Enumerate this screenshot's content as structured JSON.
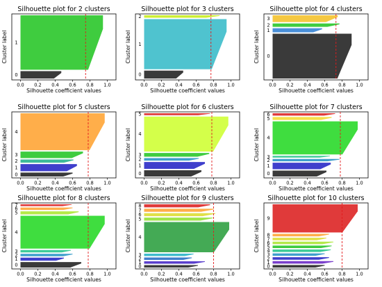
{
  "chart_data": [
    {
      "type": "silhouette",
      "title": "Silhouette plot for 2 clusters",
      "xlabel": "Silhouette coefficient values",
      "ylabel": "Cluster label",
      "xlim": [
        -0.1,
        1.1
      ],
      "xticks": [
        "0.0",
        "0.2",
        "0.4",
        "0.6",
        "0.8",
        "1.0"
      ],
      "average": 0.75,
      "clusters": [
        {
          "label": "0",
          "color": "#3a3a3a",
          "size": 12,
          "max": 0.47
        },
        {
          "label": "1",
          "color": "#3fcc3f",
          "size": 88,
          "max": 0.95
        }
      ]
    },
    {
      "type": "silhouette",
      "title": "Silhouette plot for 3 clusters",
      "xlabel": "Silhouette coefficient values",
      "ylabel": "Cluster label",
      "xlim": [
        -0.1,
        1.1
      ],
      "xticks": [
        "0.0",
        "0.2",
        "0.4",
        "0.6",
        "0.8",
        "1.0"
      ],
      "average": 0.77,
      "clusters": [
        {
          "label": "0",
          "color": "#3a3a3a",
          "size": 13,
          "max": 0.45
        },
        {
          "label": "1",
          "color": "#4fc3cf",
          "size": 82,
          "max": 0.95
        },
        {
          "label": "2",
          "color": "#ccee33",
          "size": 4,
          "max": 0.87
        }
      ]
    },
    {
      "type": "silhouette",
      "title": "Silhouette plot for 4 clusters",
      "xlabel": "Silhouette coefficient values",
      "ylabel": "Cluster label",
      "xlim": [
        -0.1,
        1.1
      ],
      "xticks": [
        "0.0",
        "0.2",
        "0.4",
        "0.6",
        "0.8",
        "1.0"
      ],
      "average": 0.73,
      "clusters": [
        {
          "label": "0",
          "color": "#3a3a3a",
          "size": 66,
          "max": 0.91
        },
        {
          "label": "1",
          "color": "#4a90d9",
          "size": 6,
          "max": 0.57
        },
        {
          "label": "2",
          "color": "#3fcc3f",
          "size": 5,
          "max": 0.77
        },
        {
          "label": "3",
          "color": "#f5c842",
          "size": 10,
          "max": 0.75
        }
      ]
    },
    {
      "type": "silhouette",
      "title": "Silhouette plot for 5 clusters",
      "xlabel": "Silhouette coefficient values",
      "ylabel": "Cluster label",
      "xlim": [
        -0.1,
        1.1
      ],
      "xticks": [
        "0.0",
        "0.2",
        "0.4",
        "0.6",
        "0.8",
        "1.0"
      ],
      "average": 0.78,
      "clusters": [
        {
          "label": "0",
          "color": "#3a3a3a",
          "size": 6,
          "max": 0.6
        },
        {
          "label": "1",
          "color": "#3f3fcc",
          "size": 11,
          "max": 0.65
        },
        {
          "label": "2",
          "color": "#3fbb99",
          "size": 5,
          "max": 0.61
        },
        {
          "label": "3",
          "color": "#3fcc3f",
          "size": 10,
          "max": 0.72
        },
        {
          "label": "4",
          "color": "#ffae4a",
          "size": 57,
          "max": 0.97
        }
      ]
    },
    {
      "type": "silhouette",
      "title": "Silhouette plot for 6 clusters",
      "xlabel": "Silhouette coefficient values",
      "ylabel": "Cluster label",
      "xlim": [
        -0.1,
        1.1
      ],
      "xticks": [
        "0.0",
        "0.2",
        "0.4",
        "0.6",
        "0.8",
        "1.0"
      ],
      "average": 0.78,
      "clusters": [
        {
          "label": "0",
          "color": "#3a3a3a",
          "size": 10,
          "max": 0.66
        },
        {
          "label": "1",
          "color": "#3f3fcc",
          "size": 11,
          "max": 0.7
        },
        {
          "label": "2",
          "color": "#3f9fcc",
          "size": 4,
          "max": 0.63
        },
        {
          "label": "3",
          "color": "#3fcc3f",
          "size": 6,
          "max": 0.75
        },
        {
          "label": "4",
          "color": "#d4ff4a",
          "size": 56,
          "max": 0.97
        },
        {
          "label": "5",
          "color": "#e03a3a",
          "size": 3,
          "max": 0.76
        }
      ]
    },
    {
      "type": "silhouette",
      "title": "Silhouette plot for 7 clusters",
      "xlabel": "Silhouette coefficient values",
      "ylabel": "Cluster label",
      "xlim": [
        -0.1,
        1.1
      ],
      "xticks": [
        "0.0",
        "0.2",
        "0.4",
        "0.6",
        "0.8",
        "1.0"
      ],
      "average": 0.78,
      "clusters": [
        {
          "label": "0",
          "color": "#3a3a3a",
          "size": 10,
          "max": 0.62
        },
        {
          "label": "1",
          "color": "#3f3fcc",
          "size": 11,
          "max": 0.67
        },
        {
          "label": "2",
          "color": "#3f9fcc",
          "size": 4,
          "max": 0.77
        },
        {
          "label": "3",
          "color": "#3fcc99",
          "size": 3,
          "max": 0.66
        },
        {
          "label": "4",
          "color": "#3fdd3f",
          "size": 56,
          "max": 0.98
        },
        {
          "label": "5",
          "color": "#f5e04a",
          "size": 5,
          "max": 0.68
        },
        {
          "label": "6",
          "color": "#e03a3a",
          "size": 4,
          "max": 0.72
        }
      ]
    },
    {
      "type": "silhouette",
      "title": "Silhouette plot for 8 clusters",
      "xlabel": "Silhouette coefficient values",
      "ylabel": "Cluster label",
      "xlim": [
        -0.1,
        1.1
      ],
      "xticks": [
        "0.0",
        "0.2",
        "0.4",
        "0.6",
        "0.8",
        "1.0"
      ],
      "average": 0.78,
      "clusters": [
        {
          "label": "0",
          "color": "#3a3a3a",
          "size": 9,
          "max": 0.7
        },
        {
          "label": "1",
          "color": "#3f3fcc",
          "size": 5,
          "max": 0.5
        },
        {
          "label": "2",
          "color": "#3f9fcc",
          "size": 4,
          "max": 0.6
        },
        {
          "label": "3",
          "color": "#3fcc99",
          "size": 4,
          "max": 0.58
        },
        {
          "label": "4",
          "color": "#3fdd3f",
          "size": 54,
          "max": 0.97
        },
        {
          "label": "5",
          "color": "#b5e94a",
          "size": 5,
          "max": 0.67
        },
        {
          "label": "6",
          "color": "#ffae4a",
          "size": 4,
          "max": 0.6
        },
        {
          "label": "7",
          "color": "#e03a3a",
          "size": 3,
          "max": 0.59
        }
      ]
    },
    {
      "type": "silhouette",
      "title": "Silhouette plot for 9 clusters",
      "xlabel": "Silhouette coefficient values",
      "ylabel": "Cluster label",
      "xlim": [
        -0.1,
        1.1
      ],
      "xticks": [
        "0.0",
        "0.2",
        "0.4",
        "0.6",
        "0.8",
        "1.0"
      ],
      "average": 0.8,
      "clusters": [
        {
          "label": "0",
          "color": "#3a3a3a",
          "size": 4,
          "max": 0.62
        },
        {
          "label": "1",
          "color": "#5a3fcc",
          "size": 4,
          "max": 0.7
        },
        {
          "label": "2",
          "color": "#3f7fcc",
          "size": 4,
          "max": 0.55
        },
        {
          "label": "3",
          "color": "#3fbbcc",
          "size": 4,
          "max": 0.57
        },
        {
          "label": "4",
          "color": "#44aa55",
          "size": 50,
          "max": 0.98
        },
        {
          "label": "5",
          "color": "#9fe44a",
          "size": 5,
          "max": 0.79
        },
        {
          "label": "6",
          "color": "#e0e04a",
          "size": 5,
          "max": 0.82
        },
        {
          "label": "7",
          "color": "#ffae4a",
          "size": 5,
          "max": 0.8
        },
        {
          "label": "8",
          "color": "#e03a3a",
          "size": 5,
          "max": 0.76
        }
      ]
    },
    {
      "type": "silhouette",
      "title": "Silhouette plot for 10 clusters",
      "xlabel": "Silhouette coefficient values",
      "ylabel": "Cluster label",
      "xlim": [
        -0.1,
        1.1
      ],
      "xticks": [
        "0.0",
        "0.2",
        "0.4",
        "0.6",
        "0.8",
        "1.0"
      ],
      "average": 0.8,
      "clusters": [
        {
          "label": "0",
          "color": "#3a3a3a",
          "size": 4,
          "max": 0.6
        },
        {
          "label": "1",
          "color": "#7a3fcc",
          "size": 4,
          "max": 0.7
        },
        {
          "label": "2",
          "color": "#3f3fcc",
          "size": 4,
          "max": 0.65
        },
        {
          "label": "3",
          "color": "#3f9fcc",
          "size": 4,
          "max": 0.6
        },
        {
          "label": "4",
          "color": "#3fcc99",
          "size": 4,
          "max": 0.67
        },
        {
          "label": "5",
          "color": "#3fcc3f",
          "size": 4,
          "max": 0.68
        },
        {
          "label": "6",
          "color": "#b5e94a",
          "size": 4,
          "max": 0.7
        },
        {
          "label": "7",
          "color": "#e0e04a",
          "size": 4,
          "max": 0.62
        },
        {
          "label": "8",
          "color": "#ffae4a",
          "size": 4,
          "max": 0.65
        },
        {
          "label": "9",
          "color": "#e03a3a",
          "size": 45,
          "max": 0.98
        }
      ]
    }
  ]
}
